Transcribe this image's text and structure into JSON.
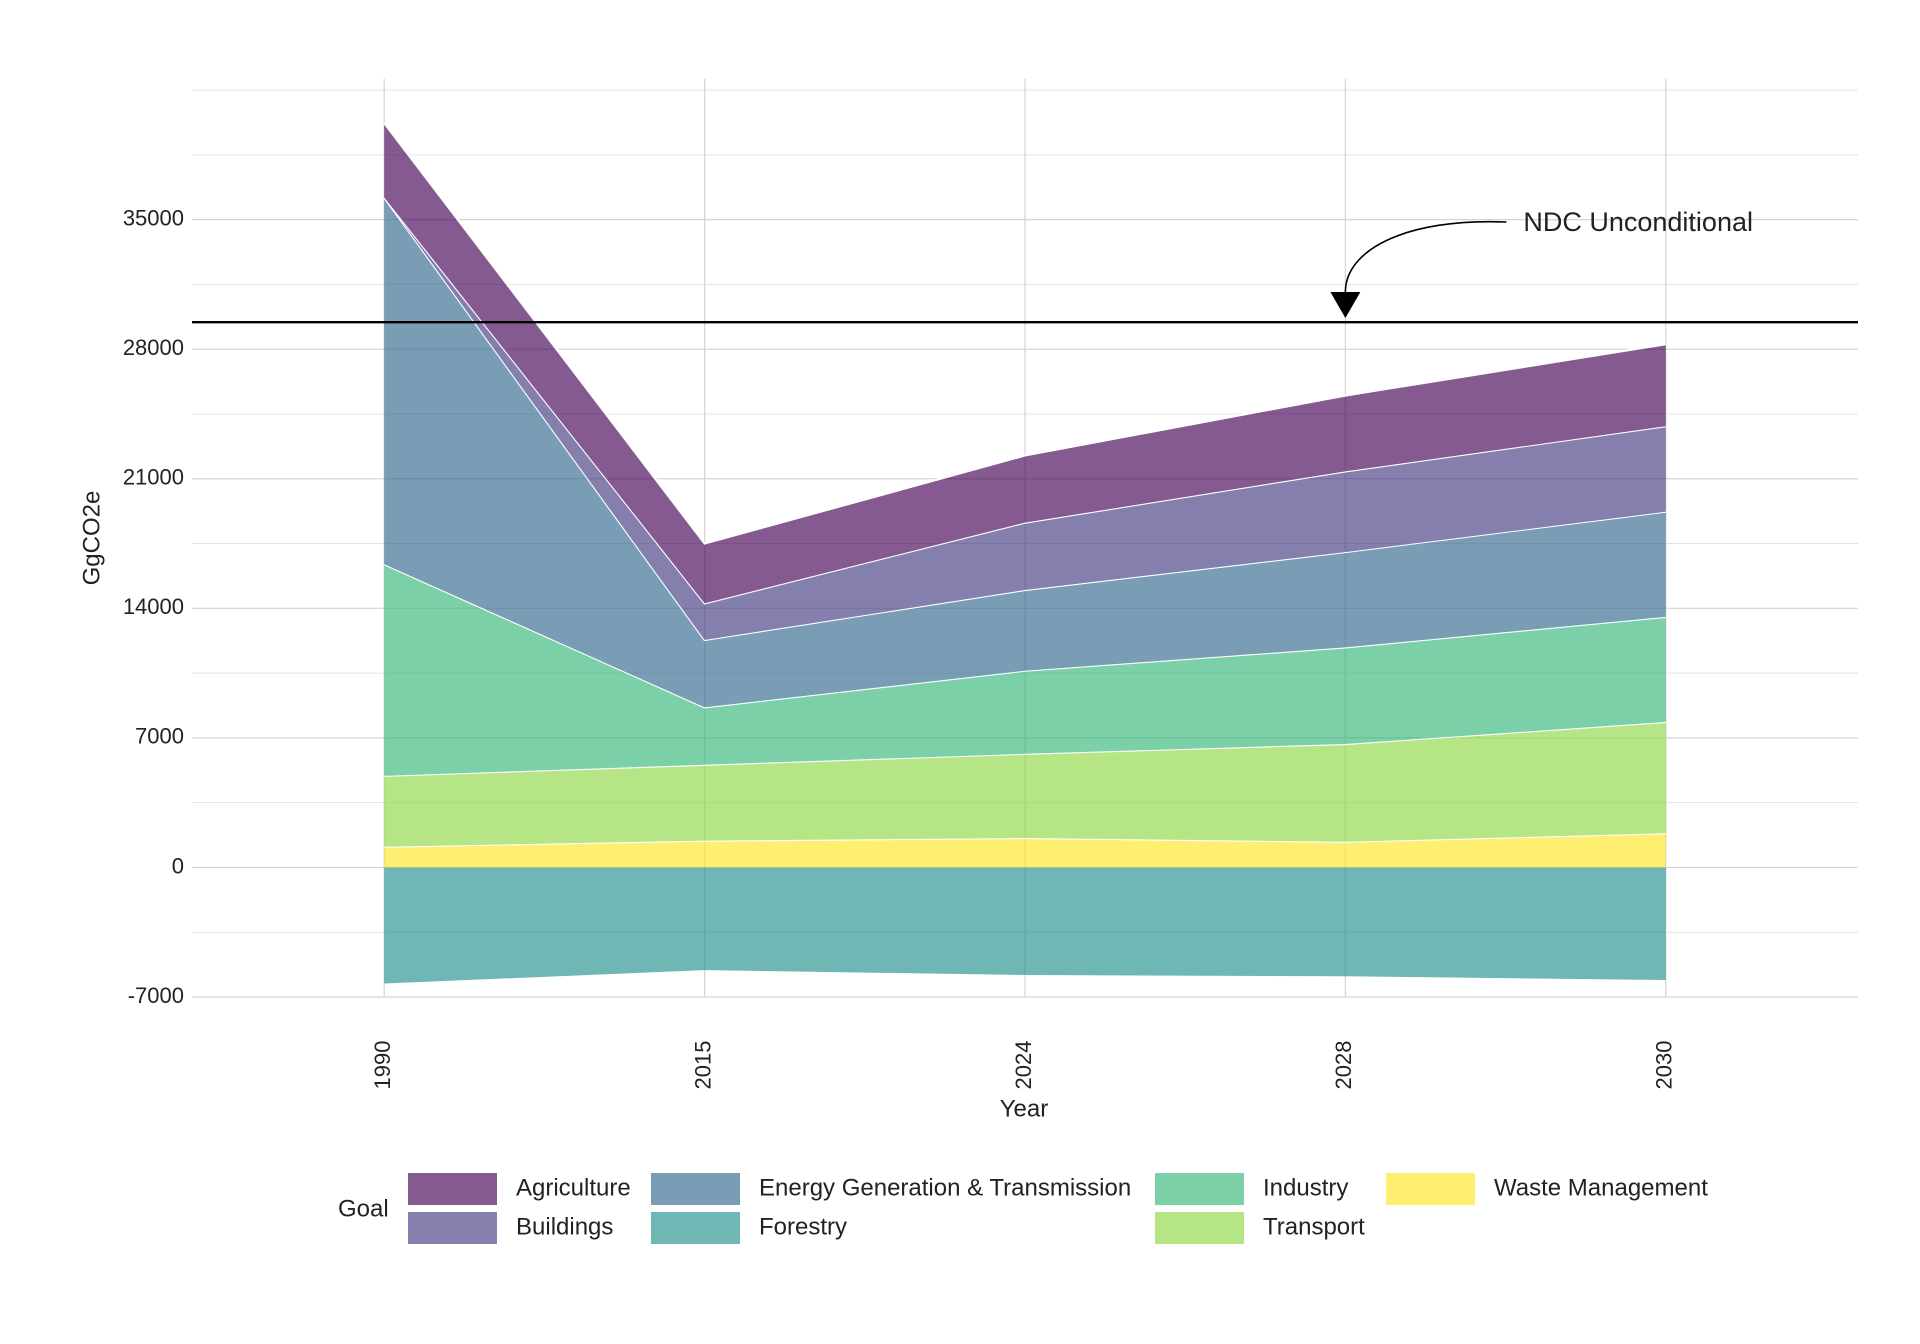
{
  "chart_data": {
    "type": "stacked_area",
    "x_label": "Year",
    "y_label": "GgCO2e",
    "categories": [
      "1990",
      "2015",
      "2024",
      "2028",
      "2030"
    ],
    "series": [
      {
        "name": "Agriculture",
        "color": "#440154",
        "values": [
          4020,
          3230,
          3630,
          4100,
          4430
        ]
      },
      {
        "name": "Buildings",
        "color": "#443A83",
        "values": [
          0,
          1980,
          3640,
          4360,
          4620
        ]
      },
      {
        "name": "Energy Generation & Transmission",
        "color": "#31688E",
        "values": [
          19820,
          3640,
          4360,
          5150,
          5680
        ]
      },
      {
        "name": "Forestry",
        "color": "#21908C",
        "values": [
          -6270,
          -5550,
          -5810,
          -5880,
          -6080
        ]
      },
      {
        "name": "Industry",
        "color": "#35B779",
        "values": [
          11430,
          3100,
          4490,
          5220,
          5680
        ]
      },
      {
        "name": "Transport",
        "color": "#8FD744",
        "values": [
          3830,
          4100,
          4550,
          5280,
          6010
        ]
      },
      {
        "name": "Waste Management",
        "color": "#FDE725",
        "values": [
          1120,
          1450,
          1590,
          1390,
          1850
        ]
      }
    ],
    "ylim": [
      -7000,
      42600
    ],
    "yticks": [
      -7000,
      0,
      7000,
      14000,
      21000,
      28000,
      35000
    ],
    "yminorticks": [
      -3500,
      3500,
      10500,
      17500,
      24500,
      31500,
      38500,
      42000
    ],
    "grid": true,
    "legend_title": "Goal",
    "legend_position": "bottom",
    "reference_line": {
      "value": 29460,
      "label": "NDC Unconditional",
      "arrow_to": "2028"
    }
  }
}
